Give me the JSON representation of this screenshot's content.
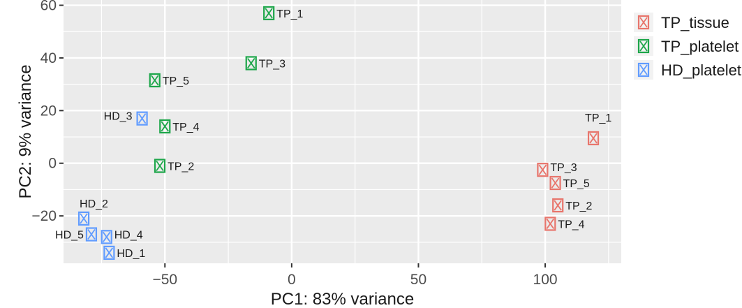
{
  "chart_data": {
    "type": "scatter",
    "title": "",
    "xlabel": "PC1: 83% variance",
    "ylabel": "PC2: 9% variance",
    "xlim": [
      -90,
      130
    ],
    "ylim": [
      -38,
      62
    ],
    "xticks": [
      -50,
      0,
      50,
      100
    ],
    "yticks": [
      -20,
      0,
      20,
      40,
      60
    ],
    "xtick_labels": [
      "−50",
      "0",
      "50",
      "100"
    ],
    "ytick_labels": [
      "−20",
      "0",
      "20",
      "40",
      "60"
    ],
    "grid": true,
    "legend_position": "right",
    "series": [
      {
        "name": "TP_tissue",
        "color": "#E8756C",
        "points": [
          {
            "label": "TP_1",
            "x": 119,
            "y": 9.5
          },
          {
            "label": "TP_3",
            "x": 99,
            "y": -2.5
          },
          {
            "label": "TP_5",
            "x": 104,
            "y": -7.5
          },
          {
            "label": "TP_2",
            "x": 105,
            "y": -16
          },
          {
            "label": "TP_4",
            "x": 102,
            "y": -23
          }
        ]
      },
      {
        "name": "TP_platelet",
        "color": "#1DA64A",
        "points": [
          {
            "label": "TP_1",
            "x": -9,
            "y": 57
          },
          {
            "label": "TP_3",
            "x": -16,
            "y": 38
          },
          {
            "label": "TP_5",
            "x": -54,
            "y": 31.5
          },
          {
            "label": "TP_4",
            "x": -50,
            "y": 14
          },
          {
            "label": "TP_2",
            "x": -52,
            "y": -1
          }
        ]
      },
      {
        "name": "HD_platelet",
        "color": "#619CFF",
        "points": [
          {
            "label": "HD_3",
            "x": -59,
            "y": 17
          },
          {
            "label": "HD_2",
            "x": -82,
            "y": -21
          },
          {
            "label": "HD_5",
            "x": -79,
            "y": -27
          },
          {
            "label": "HD_4",
            "x": -73,
            "y": -28
          },
          {
            "label": "HD_1",
            "x": -72,
            "y": -34
          }
        ]
      }
    ]
  }
}
